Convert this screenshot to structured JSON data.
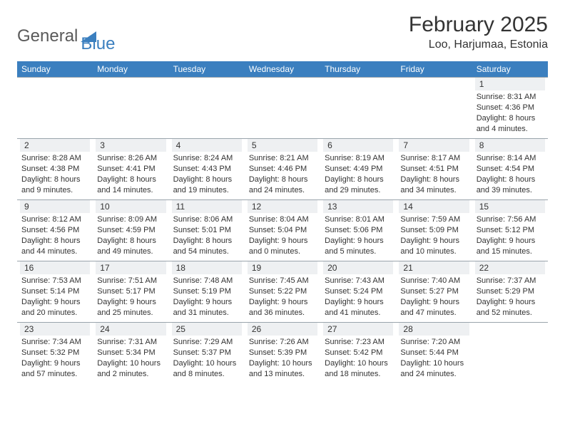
{
  "logo": {
    "part1": "General",
    "part2": "Blue"
  },
  "title": "February 2025",
  "location": "Loo, Harjumaa, Estonia",
  "colors": {
    "header_bg": "#3b7fbf",
    "header_text": "#ffffff",
    "daynum_bg": "#eef0f2",
    "border": "#9aa4ac",
    "text": "#333333",
    "logo_gray": "#5a5a5a",
    "logo_blue": "#3b7fbf"
  },
  "weekdays": [
    "Sunday",
    "Monday",
    "Tuesday",
    "Wednesday",
    "Thursday",
    "Friday",
    "Saturday"
  ],
  "weeks": [
    [
      null,
      null,
      null,
      null,
      null,
      null,
      {
        "n": "1",
        "sunrise": "Sunrise: 8:31 AM",
        "sunset": "Sunset: 4:36 PM",
        "day1": "Daylight: 8 hours",
        "day2": "and 4 minutes."
      }
    ],
    [
      {
        "n": "2",
        "sunrise": "Sunrise: 8:28 AM",
        "sunset": "Sunset: 4:38 PM",
        "day1": "Daylight: 8 hours",
        "day2": "and 9 minutes."
      },
      {
        "n": "3",
        "sunrise": "Sunrise: 8:26 AM",
        "sunset": "Sunset: 4:41 PM",
        "day1": "Daylight: 8 hours",
        "day2": "and 14 minutes."
      },
      {
        "n": "4",
        "sunrise": "Sunrise: 8:24 AM",
        "sunset": "Sunset: 4:43 PM",
        "day1": "Daylight: 8 hours",
        "day2": "and 19 minutes."
      },
      {
        "n": "5",
        "sunrise": "Sunrise: 8:21 AM",
        "sunset": "Sunset: 4:46 PM",
        "day1": "Daylight: 8 hours",
        "day2": "and 24 minutes."
      },
      {
        "n": "6",
        "sunrise": "Sunrise: 8:19 AM",
        "sunset": "Sunset: 4:49 PM",
        "day1": "Daylight: 8 hours",
        "day2": "and 29 minutes."
      },
      {
        "n": "7",
        "sunrise": "Sunrise: 8:17 AM",
        "sunset": "Sunset: 4:51 PM",
        "day1": "Daylight: 8 hours",
        "day2": "and 34 minutes."
      },
      {
        "n": "8",
        "sunrise": "Sunrise: 8:14 AM",
        "sunset": "Sunset: 4:54 PM",
        "day1": "Daylight: 8 hours",
        "day2": "and 39 minutes."
      }
    ],
    [
      {
        "n": "9",
        "sunrise": "Sunrise: 8:12 AM",
        "sunset": "Sunset: 4:56 PM",
        "day1": "Daylight: 8 hours",
        "day2": "and 44 minutes."
      },
      {
        "n": "10",
        "sunrise": "Sunrise: 8:09 AM",
        "sunset": "Sunset: 4:59 PM",
        "day1": "Daylight: 8 hours",
        "day2": "and 49 minutes."
      },
      {
        "n": "11",
        "sunrise": "Sunrise: 8:06 AM",
        "sunset": "Sunset: 5:01 PM",
        "day1": "Daylight: 8 hours",
        "day2": "and 54 minutes."
      },
      {
        "n": "12",
        "sunrise": "Sunrise: 8:04 AM",
        "sunset": "Sunset: 5:04 PM",
        "day1": "Daylight: 9 hours",
        "day2": "and 0 minutes."
      },
      {
        "n": "13",
        "sunrise": "Sunrise: 8:01 AM",
        "sunset": "Sunset: 5:06 PM",
        "day1": "Daylight: 9 hours",
        "day2": "and 5 minutes."
      },
      {
        "n": "14",
        "sunrise": "Sunrise: 7:59 AM",
        "sunset": "Sunset: 5:09 PM",
        "day1": "Daylight: 9 hours",
        "day2": "and 10 minutes."
      },
      {
        "n": "15",
        "sunrise": "Sunrise: 7:56 AM",
        "sunset": "Sunset: 5:12 PM",
        "day1": "Daylight: 9 hours",
        "day2": "and 15 minutes."
      }
    ],
    [
      {
        "n": "16",
        "sunrise": "Sunrise: 7:53 AM",
        "sunset": "Sunset: 5:14 PM",
        "day1": "Daylight: 9 hours",
        "day2": "and 20 minutes."
      },
      {
        "n": "17",
        "sunrise": "Sunrise: 7:51 AM",
        "sunset": "Sunset: 5:17 PM",
        "day1": "Daylight: 9 hours",
        "day2": "and 25 minutes."
      },
      {
        "n": "18",
        "sunrise": "Sunrise: 7:48 AM",
        "sunset": "Sunset: 5:19 PM",
        "day1": "Daylight: 9 hours",
        "day2": "and 31 minutes."
      },
      {
        "n": "19",
        "sunrise": "Sunrise: 7:45 AM",
        "sunset": "Sunset: 5:22 PM",
        "day1": "Daylight: 9 hours",
        "day2": "and 36 minutes."
      },
      {
        "n": "20",
        "sunrise": "Sunrise: 7:43 AM",
        "sunset": "Sunset: 5:24 PM",
        "day1": "Daylight: 9 hours",
        "day2": "and 41 minutes."
      },
      {
        "n": "21",
        "sunrise": "Sunrise: 7:40 AM",
        "sunset": "Sunset: 5:27 PM",
        "day1": "Daylight: 9 hours",
        "day2": "and 47 minutes."
      },
      {
        "n": "22",
        "sunrise": "Sunrise: 7:37 AM",
        "sunset": "Sunset: 5:29 PM",
        "day1": "Daylight: 9 hours",
        "day2": "and 52 minutes."
      }
    ],
    [
      {
        "n": "23",
        "sunrise": "Sunrise: 7:34 AM",
        "sunset": "Sunset: 5:32 PM",
        "day1": "Daylight: 9 hours",
        "day2": "and 57 minutes."
      },
      {
        "n": "24",
        "sunrise": "Sunrise: 7:31 AM",
        "sunset": "Sunset: 5:34 PM",
        "day1": "Daylight: 10 hours",
        "day2": "and 2 minutes."
      },
      {
        "n": "25",
        "sunrise": "Sunrise: 7:29 AM",
        "sunset": "Sunset: 5:37 PM",
        "day1": "Daylight: 10 hours",
        "day2": "and 8 minutes."
      },
      {
        "n": "26",
        "sunrise": "Sunrise: 7:26 AM",
        "sunset": "Sunset: 5:39 PM",
        "day1": "Daylight: 10 hours",
        "day2": "and 13 minutes."
      },
      {
        "n": "27",
        "sunrise": "Sunrise: 7:23 AM",
        "sunset": "Sunset: 5:42 PM",
        "day1": "Daylight: 10 hours",
        "day2": "and 18 minutes."
      },
      {
        "n": "28",
        "sunrise": "Sunrise: 7:20 AM",
        "sunset": "Sunset: 5:44 PM",
        "day1": "Daylight: 10 hours",
        "day2": "and 24 minutes."
      },
      null
    ]
  ]
}
